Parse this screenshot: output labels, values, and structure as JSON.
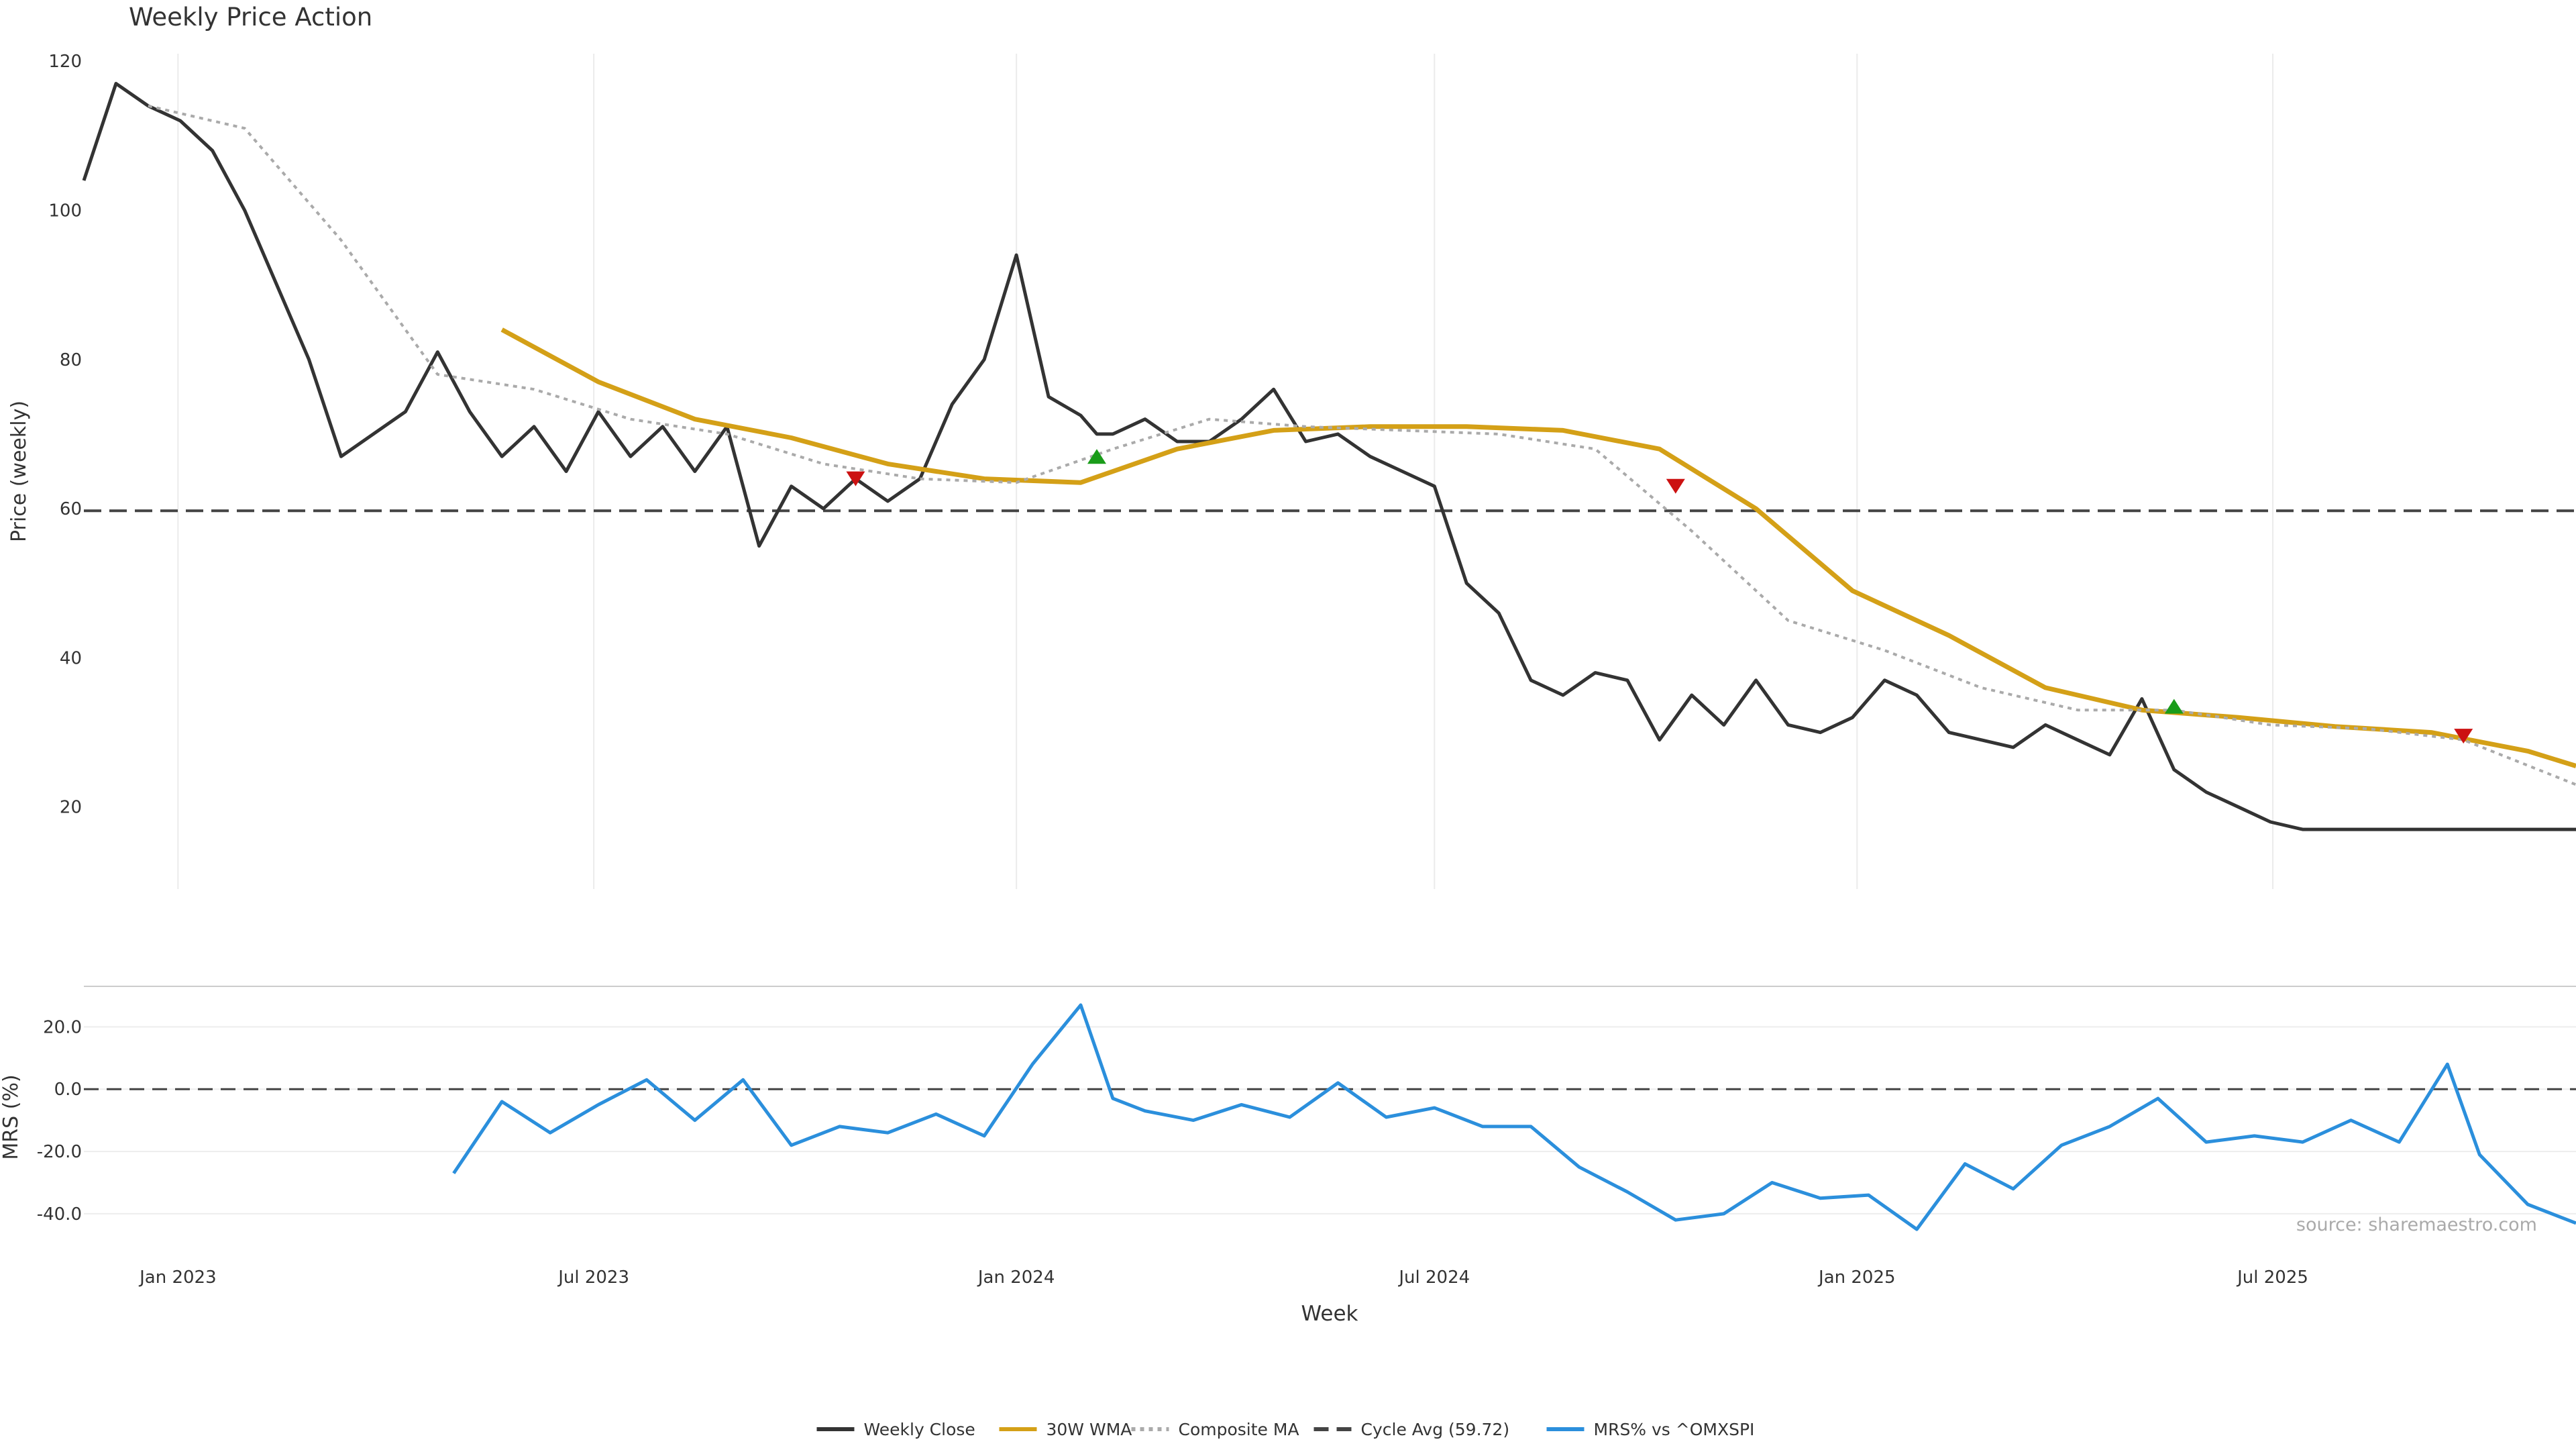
{
  "chart_data": {
    "type": "line",
    "title": "Weekly Price Action",
    "xlabel": "Week",
    "source_note": "source: sharemaestro.com",
    "x_range": [
      "2022-11-21",
      "2025-11-10"
    ],
    "x_ticks": [
      "Jan 2023",
      "Jul 2023",
      "Jan 2024",
      "Jul 2024",
      "Jan 2025",
      "Jul 2025"
    ],
    "price_panel": {
      "ylabel": "Price (weekly)",
      "ylim": [
        9,
        121
      ],
      "y_ticks": [
        "120",
        "100",
        "80",
        "60",
        "40",
        "20"
      ],
      "grid": true,
      "reference_line": {
        "value": 59.72,
        "style": "dashed",
        "color": "#444444"
      }
    },
    "mrs_panel": {
      "ylabel": "MRS (%)",
      "ylim": [
        -51,
        33
      ],
      "y_ticks": [
        "20.0",
        "0.0",
        "-20.0",
        "-40.0"
      ],
      "zero_line": "dashed"
    },
    "legend": {
      "placement": "bottom-center",
      "items": [
        {
          "label": "Weekly Close",
          "color": "#333333",
          "style": "solid"
        },
        {
          "label": "30W WMA",
          "color": "#d4a017",
          "style": "solid"
        },
        {
          "label": "Composite MA",
          "color": "#aaaaaa",
          "style": "dotted"
        },
        {
          "label": "Cycle Avg (59.72)",
          "color": "#444444",
          "style": "dashed"
        },
        {
          "label": "MRS% vs ^OMXSPI",
          "color": "#2b8fdc",
          "style": "solid"
        }
      ]
    },
    "colors": {
      "buy_signal": "#1a9c1a",
      "sell_signal": "#cc1111"
    },
    "series": [
      {
        "name": "Weekly Close",
        "x": [
          "2022-11-21",
          "2022-12-05",
          "2022-12-19",
          "2023-01-02",
          "2023-01-16",
          "2023-01-30",
          "2023-02-13",
          "2023-02-27",
          "2023-03-13",
          "2023-03-27",
          "2023-04-10",
          "2023-04-24",
          "2023-05-08",
          "2023-05-22",
          "2023-06-05",
          "2023-06-19",
          "2023-07-03",
          "2023-07-17",
          "2023-07-31",
          "2023-08-14",
          "2023-08-28",
          "2023-09-11",
          "2023-09-25",
          "2023-10-09",
          "2023-10-23",
          "2023-11-06",
          "2023-11-20",
          "2023-12-04",
          "2023-12-18",
          "2024-01-01",
          "2024-01-15",
          "2024-01-29",
          "2024-02-05",
          "2024-02-12",
          "2024-02-26",
          "2024-03-11",
          "2024-03-25",
          "2024-04-08",
          "2024-04-22",
          "2024-05-06",
          "2024-05-20",
          "2024-06-03",
          "2024-06-17",
          "2024-07-01",
          "2024-07-15",
          "2024-07-29",
          "2024-08-12",
          "2024-08-26",
          "2024-09-09",
          "2024-09-23",
          "2024-10-07",
          "2024-10-21",
          "2024-11-04",
          "2024-11-18",
          "2024-12-02",
          "2024-12-16",
          "2024-12-30",
          "2025-01-13",
          "2025-01-27",
          "2025-02-10",
          "2025-02-24",
          "2025-03-10",
          "2025-03-24",
          "2025-04-07",
          "2025-04-21",
          "2025-05-05",
          "2025-05-19",
          "2025-06-02",
          "2025-06-16",
          "2025-06-30",
          "2025-07-14",
          "2025-07-28",
          "2025-08-11",
          "2025-08-25",
          "2025-09-08",
          "2025-09-15",
          "2025-09-29",
          "2025-10-13",
          "2025-10-27",
          "2025-11-10"
        ],
        "values": [
          104,
          117,
          114,
          112,
          108,
          100,
          90,
          80,
          67,
          70,
          73,
          81,
          73,
          67,
          71,
          65,
          73,
          67,
          71,
          65,
          71,
          55,
          63,
          60,
          64,
          61,
          64,
          74,
          80,
          94,
          75,
          72.5,
          70,
          70,
          72,
          69,
          69,
          72,
          76,
          69,
          70,
          67,
          65,
          63,
          50,
          46,
          37,
          35,
          38,
          37,
          29,
          35,
          31,
          37,
          31,
          30,
          32,
          37,
          35,
          30,
          29,
          28,
          31,
          29,
          27,
          34.5,
          25,
          22,
          20,
          18,
          17,
          17,
          17,
          17,
          17,
          17,
          17,
          17,
          17,
          17
        ]
      },
      {
        "name": "30W WMA",
        "x": [
          "2023-05-22",
          "2023-07-03",
          "2023-08-14",
          "2023-09-25",
          "2023-11-06",
          "2023-12-18",
          "2024-01-29",
          "2024-03-11",
          "2024-04-22",
          "2024-06-03",
          "2024-07-15",
          "2024-08-26",
          "2024-10-07",
          "2024-11-18",
          "2024-12-30",
          "2025-02-10",
          "2025-03-24",
          "2025-05-05",
          "2025-06-16",
          "2025-07-28",
          "2025-09-08",
          "2025-10-20",
          "2025-11-10"
        ],
        "values": [
          84,
          77,
          72,
          69.5,
          66,
          64,
          63.5,
          68,
          70.5,
          71,
          71,
          70.5,
          68,
          60,
          49,
          43,
          36,
          33,
          32,
          30.8,
          30,
          27.5,
          25.5
        ]
      },
      {
        "name": "Composite MA",
        "x": [
          "2022-12-19",
          "2023-01-30",
          "2023-03-13",
          "2023-04-24",
          "2023-06-05",
          "2023-07-17",
          "2023-08-28",
          "2023-10-09",
          "2023-11-20",
          "2024-01-01",
          "2024-02-12",
          "2024-03-25",
          "2024-05-06",
          "2024-06-17",
          "2024-07-29",
          "2024-09-09",
          "2024-10-21",
          "2024-12-02",
          "2025-01-13",
          "2025-02-24",
          "2025-04-07",
          "2025-05-19",
          "2025-06-30",
          "2025-08-11",
          "2025-09-22",
          "2025-11-10"
        ],
        "values": [
          114,
          111,
          96,
          78,
          76,
          72,
          70,
          66,
          64,
          63.5,
          68,
          72,
          71,
          70.5,
          70,
          68,
          57,
          45,
          41,
          36,
          33,
          33,
          31,
          30.5,
          29,
          23
        ]
      },
      {
        "name": "MRS% vs ^OMXSPI",
        "x": [
          "2023-05-01",
          "2023-05-22",
          "2023-06-12",
          "2023-07-03",
          "2023-07-24",
          "2023-08-14",
          "2023-09-04",
          "2023-09-25",
          "2023-10-16",
          "2023-11-06",
          "2023-11-27",
          "2023-12-18",
          "2024-01-08",
          "2024-01-29",
          "2024-02-12",
          "2024-02-26",
          "2024-03-18",
          "2024-04-08",
          "2024-04-29",
          "2024-05-20",
          "2024-06-10",
          "2024-07-01",
          "2024-07-22",
          "2024-08-12",
          "2024-09-02",
          "2024-09-23",
          "2024-10-14",
          "2024-11-04",
          "2024-11-25",
          "2024-12-16",
          "2025-01-06",
          "2025-01-27",
          "2025-02-17",
          "2025-03-10",
          "2025-03-31",
          "2025-04-21",
          "2025-05-12",
          "2025-06-02",
          "2025-06-23",
          "2025-07-14",
          "2025-08-04",
          "2025-08-25",
          "2025-09-15",
          "2025-09-29",
          "2025-10-20",
          "2025-11-10"
        ],
        "values": [
          -27,
          -4,
          -14,
          -5,
          3,
          -10,
          3,
          -18,
          -12,
          -14,
          -8,
          -15,
          8,
          27,
          -3,
          -7,
          -10,
          -5,
          -9,
          2,
          -9,
          -6,
          -12,
          -12,
          -25,
          -33,
          -42,
          -40,
          -30,
          -35,
          -34,
          -45,
          -24,
          -32,
          -18,
          -12,
          -3,
          -17,
          -15,
          -17,
          -10,
          -17,
          8,
          -21,
          -37,
          -43
        ]
      }
    ],
    "signals": [
      {
        "type": "sell",
        "x": "2023-10-23",
        "y": 64
      },
      {
        "type": "buy",
        "x": "2024-02-05",
        "y": 67
      },
      {
        "type": "sell",
        "x": "2024-10-14",
        "y": 63
      },
      {
        "type": "buy",
        "x": "2025-05-19",
        "y": 33.5
      },
      {
        "type": "sell",
        "x": "2025-09-22",
        "y": 29.5
      }
    ]
  }
}
